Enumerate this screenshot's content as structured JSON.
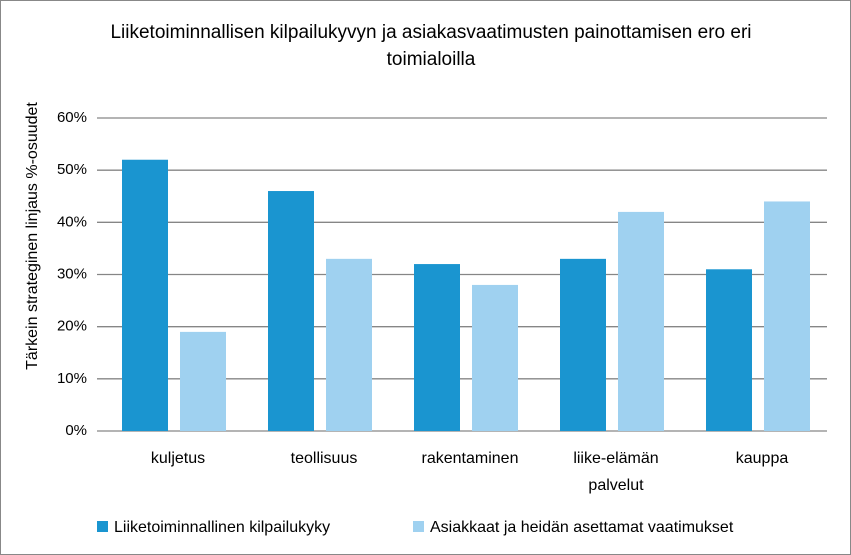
{
  "chart_data": {
    "type": "bar",
    "title": "Liiketoiminnallisen kilpailukyvyn ja asiakasvaatimusten painottamisen ero eri toimialoilla",
    "y_label": "Tärkein strateginen linjaus %-osuudet",
    "categories": [
      "kuljetus",
      "teollisuus",
      "rakentaminen",
      "liike-elämän palvelut",
      "kauppa"
    ],
    "series": [
      {
        "name": "Liiketoiminnallinen kilpailukyky",
        "color": "#1a95d0",
        "values": [
          52,
          46,
          32,
          33,
          31
        ]
      },
      {
        "name": "Asiakkaat ja heidän asettamat vaatimukset",
        "color": "#9fd1f0",
        "values": [
          19,
          33,
          28,
          42,
          44
        ]
      }
    ],
    "ylim": [
      0,
      60
    ],
    "yticks": [
      {
        "value": 0,
        "label": "0%"
      },
      {
        "value": 10,
        "label": "10%"
      },
      {
        "value": 20,
        "label": "20%"
      },
      {
        "value": 30,
        "label": "30%"
      },
      {
        "value": 40,
        "label": "40%"
      },
      {
        "value": 50,
        "label": "50%"
      },
      {
        "value": 60,
        "label": "60%"
      }
    ],
    "grid": true,
    "legend": "bottom"
  }
}
